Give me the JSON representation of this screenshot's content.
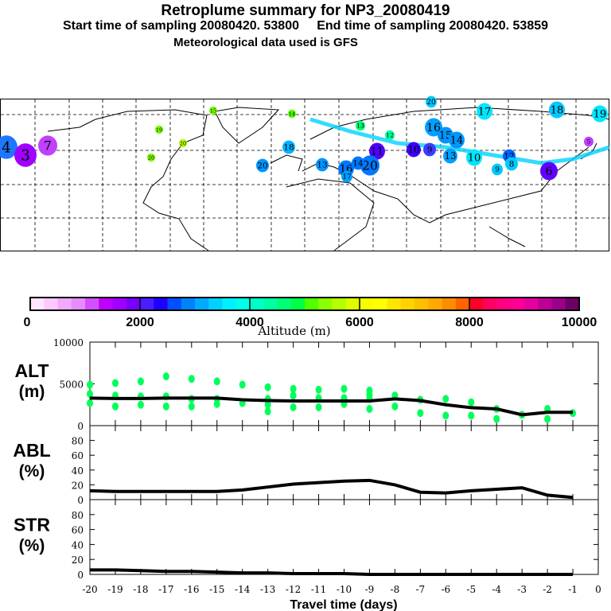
{
  "header": {
    "title": "Retroplume summary for NP3_20080419",
    "subtitle": "Start time of sampling 20080420. 53800     End time of sampling 20080420. 53859",
    "met": "Meteorological data used is GFS"
  },
  "map": {
    "markers": [
      {
        "label": "20",
        "color": "#00c8ff"
      },
      {
        "label": "17",
        "color": "#00e6ff"
      },
      {
        "label": "18",
        "color": "#00c8ff"
      },
      {
        "label": "19",
        "color": "#00e6ff"
      },
      {
        "label": "16",
        "color": "#00a0ff"
      },
      {
        "label": "15",
        "color": "#0096ff"
      },
      {
        "label": "14",
        "color": "#0096ff"
      },
      {
        "label": "13",
        "color": "#00a0ff"
      },
      {
        "label": "12",
        "color": "#0064ff"
      },
      {
        "label": "10",
        "color": "#00e6ff"
      },
      {
        "label": "9",
        "color": "#00c8ff"
      },
      {
        "label": "8",
        "color": "#00c8ff"
      },
      {
        "label": "11",
        "color": "#5000ff"
      },
      {
        "label": "10",
        "color": "#3c00ff"
      },
      {
        "label": "9",
        "color": "#3c3cff"
      },
      {
        "label": "20",
        "color": "#0078ff"
      },
      {
        "label": "16",
        "color": "#0078ff"
      },
      {
        "label": "14",
        "color": "#0078ff"
      },
      {
        "label": "13",
        "color": "#0096ff"
      },
      {
        "label": "17",
        "color": "#00a0ff"
      },
      {
        "label": "20",
        "color": "#0096ff"
      },
      {
        "label": "18",
        "color": "#00b4ff"
      },
      {
        "label": "4",
        "color": "#1e78ff"
      },
      {
        "label": "3",
        "color": "#a000ff"
      },
      {
        "label": "7",
        "color": "#c040ff"
      },
      {
        "label": "15",
        "color": "#78ff00"
      },
      {
        "label": "14",
        "color": "#50ff00"
      },
      {
        "label": "13",
        "color": "#00ff78"
      },
      {
        "label": "12",
        "color": "#00ffa0"
      },
      {
        "label": "19",
        "color": "#78ff00"
      },
      {
        "label": "20",
        "color": "#b4ff00"
      },
      {
        "label": "20",
        "color": "#78ff00"
      },
      {
        "label": "6",
        "color": "#6000ff"
      },
      {
        "label": "5",
        "color": "#c040ff"
      }
    ]
  },
  "colorbar": {
    "ticks": [
      "0",
      "2000",
      "4000",
      "6000",
      "8000",
      "10000"
    ],
    "label": "Altitude (m)",
    "colors": [
      "#ffe6ff",
      "#ffc8ff",
      "#f0aaff",
      "#e68cff",
      "#d250ff",
      "#be00ff",
      "#a000ff",
      "#7800ff",
      "#4b1eff",
      "#1e00ff",
      "#0050ff",
      "#0082ff",
      "#00aaff",
      "#00d2ff",
      "#00f0ff",
      "#00ffe6",
      "#00ffc8",
      "#00ffa0",
      "#00ff78",
      "#00ff46",
      "#50ff00",
      "#8cff00",
      "#b4ff00",
      "#dcff00",
      "#f5ff00",
      "#ffff00",
      "#ffe600",
      "#ffd200",
      "#ffbe00",
      "#ffaa00",
      "#ff8c00",
      "#ff6400",
      "#ff0028",
      "#ff0064",
      "#ff0082",
      "#ff0096",
      "#e6009b",
      "#be0096",
      "#9b008c",
      "#6e0064"
    ]
  },
  "chart_data": {
    "type": "line",
    "xlabel": "Travel time (days)",
    "x": [
      -20,
      -19,
      -18,
      -17,
      -16,
      -15,
      -14,
      -13,
      -12,
      -11,
      -10,
      -9,
      -8,
      -7,
      -6,
      -5,
      -4,
      -3,
      -2,
      -1
    ],
    "xticks": [
      "-20",
      "-19",
      "-18",
      "-17",
      "-16",
      "-15",
      "-14",
      "-13",
      "-12",
      "-11",
      "-10",
      "-9",
      "-8",
      "-7",
      "-6",
      "-5",
      "-4",
      "-3",
      "-2",
      "-1",
      "0"
    ],
    "xlim": [
      -20,
      0
    ],
    "panels": [
      {
        "name": "ALT",
        "ylabel": "ALT",
        "yunit": "(m)",
        "ylim": [
          0,
          10000
        ],
        "yticks": [
          "0",
          "5000",
          "10000"
        ],
        "ytickvals": [
          0,
          5000,
          10000
        ],
        "values": [
          3300,
          3250,
          3250,
          3300,
          3300,
          3300,
          3100,
          3000,
          2950,
          2950,
          2950,
          2950,
          3200,
          3000,
          2500,
          2150,
          2000,
          1300,
          1600,
          1600
        ],
        "scatter": [
          [
            -20,
            4900
          ],
          [
            -20,
            3800
          ],
          [
            -20,
            2700
          ],
          [
            -19,
            5100
          ],
          [
            -19,
            3600
          ],
          [
            -19,
            2300
          ],
          [
            -18,
            5300
          ],
          [
            -18,
            3500
          ],
          [
            -18,
            2500
          ],
          [
            -17,
            5900
          ],
          [
            -17,
            3500
          ],
          [
            -17,
            2300
          ],
          [
            -16,
            5600
          ],
          [
            -16,
            3200
          ],
          [
            -16,
            2300
          ],
          [
            -15,
            5300
          ],
          [
            -15,
            3200
          ],
          [
            -15,
            2600
          ],
          [
            -14,
            4900
          ],
          [
            -14,
            2700
          ],
          [
            -13,
            4600
          ],
          [
            -13,
            3200
          ],
          [
            -13,
            2500
          ],
          [
            -13,
            1700
          ],
          [
            -12,
            4400
          ],
          [
            -12,
            3600
          ],
          [
            -12,
            2200
          ],
          [
            -11,
            4300
          ],
          [
            -11,
            3300
          ],
          [
            -11,
            2200
          ],
          [
            -10,
            4400
          ],
          [
            -10,
            3300
          ],
          [
            -10,
            2600
          ],
          [
            -9,
            4200
          ],
          [
            -9,
            3700
          ],
          [
            -9,
            3200
          ],
          [
            -9,
            2000
          ],
          [
            -8,
            3600
          ],
          [
            -8,
            2300
          ],
          [
            -7,
            3100
          ],
          [
            -7,
            1500
          ],
          [
            -6,
            3200
          ],
          [
            -6,
            1200
          ],
          [
            -5,
            2800
          ],
          [
            -5,
            1200
          ],
          [
            -4,
            2000
          ],
          [
            -4,
            800
          ],
          [
            -3,
            1300
          ],
          [
            -2,
            2000
          ],
          [
            -2,
            800
          ],
          [
            -1,
            1500
          ]
        ]
      },
      {
        "name": "ABL",
        "ylabel": "ABL",
        "yunit": "(%)",
        "ylim": [
          0,
          100
        ],
        "yticks": [
          "0",
          "20",
          "40",
          "60",
          "80"
        ],
        "ytickvals": [
          0,
          20,
          40,
          60,
          80
        ],
        "values": [
          12,
          11,
          11,
          11,
          11,
          11,
          13,
          17,
          21,
          23,
          25,
          26,
          20,
          10,
          9,
          12,
          14,
          16,
          6,
          3
        ]
      },
      {
        "name": "STR",
        "ylabel": "STR",
        "yunit": "(%)",
        "ylim": [
          0,
          100
        ],
        "yticks": [
          "0",
          "20",
          "40",
          "60",
          "80"
        ],
        "ytickvals": [
          0,
          20,
          40,
          60,
          80
        ],
        "values": [
          6,
          6,
          5,
          4,
          4,
          3,
          2,
          2,
          1,
          1,
          1,
          0,
          0,
          0,
          0,
          0,
          0,
          0,
          0,
          0
        ]
      }
    ]
  }
}
